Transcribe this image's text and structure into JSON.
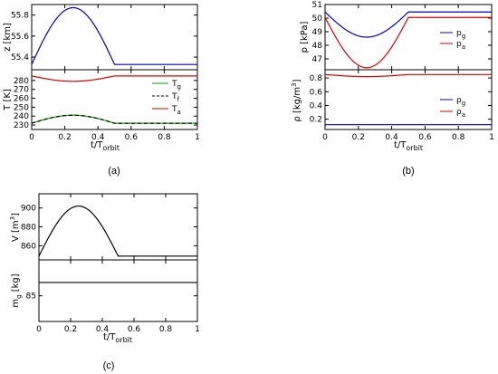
{
  "colors": {
    "blue": "#0000cc",
    "green": "#00aa00",
    "red": "#dd0000",
    "black": "#000000"
  },
  "chart_data": [
    {
      "panel": "(a)",
      "type": "line",
      "subplots": [
        {
          "id": "a_top",
          "ylabel": "z [km]",
          "ylim": [
            55.28,
            55.9
          ],
          "yticks": [
            {
              "v": 55.4,
              "label": "55.4"
            },
            {
              "v": 55.6,
              "label": "55.6"
            },
            {
              "v": 55.8,
              "label": "55.8"
            }
          ],
          "series": [
            {
              "color": "#0000cc",
              "dash": false,
              "fn": "bump",
              "base": 55.33,
              "amp": 0.54
            }
          ],
          "legend": []
        },
        {
          "id": "a_bot",
          "ylabel": "T [K]",
          "ylim": [
            225,
            292
          ],
          "yticks": [
            {
              "v": 230,
              "label": "230"
            },
            {
              "v": 240,
              "label": "240"
            },
            {
              "v": 250,
              "label": "250"
            },
            {
              "v": 260,
              "label": "260"
            },
            {
              "v": 270,
              "label": "270"
            },
            {
              "v": 280,
              "label": "280"
            }
          ],
          "xlabel": "t/T",
          "xlabel_sub": "orbit",
          "xticks": [
            {
              "v": 0,
              "label": "0"
            },
            {
              "v": 0.2,
              "label": "0.2"
            },
            {
              "v": 0.4,
              "label": "0.4"
            },
            {
              "v": 0.6,
              "label": "0.6"
            },
            {
              "v": 0.8,
              "label": "0.8"
            },
            {
              "v": 1,
              "label": "1"
            }
          ],
          "series": [
            {
              "name": "T",
              "sub": "g",
              "color": "#00aa00",
              "dash": false,
              "fn": "bump",
              "base": 232,
              "amp": 9
            },
            {
              "name": "T",
              "sub": "f",
              "color": "#000000",
              "dash": true,
              "fn": "bump",
              "base": 232,
              "amp": 9
            },
            {
              "name": "T",
              "sub": "a",
              "color": "#dd0000",
              "dash": false,
              "fn": "bump",
              "base": 285,
              "amp": -6
            }
          ]
        }
      ]
    },
    {
      "panel": "(b)",
      "type": "line",
      "subplots": [
        {
          "id": "b_top",
          "ylabel": "p [kPa]",
          "ylim": [
            46.2,
            51.0
          ],
          "yticks": [
            {
              "v": 47,
              "label": "47"
            },
            {
              "v": 48,
              "label": "48"
            },
            {
              "v": 49,
              "label": "49"
            },
            {
              "v": 50,
              "label": "50"
            },
            {
              "v": 51,
              "label": "51"
            }
          ],
          "series": [
            {
              "name": "p",
              "sub": "g",
              "color": "#0000cc",
              "dash": false,
              "fn": "bump",
              "base": 50.45,
              "amp": -1.85
            },
            {
              "name": "p",
              "sub": "a",
              "color": "#dd0000",
              "dash": false,
              "fn": "bump",
              "base": 50.05,
              "amp": -3.7
            }
          ]
        },
        {
          "id": "b_bot",
          "ylabel": "ρ [kg/m",
          "ylabel_sup": "3",
          "ylabel_end": "]",
          "ylim": [
            0.05,
            0.92
          ],
          "yticks": [
            {
              "v": 0.2,
              "label": "0.2"
            },
            {
              "v": 0.4,
              "label": "0.4"
            },
            {
              "v": 0.6,
              "label": "0.6"
            },
            {
              "v": 0.8,
              "label": "0.8"
            }
          ],
          "xlabel": "t/T",
          "xlabel_sub": "orbit",
          "xticks": [
            {
              "v": 0,
              "label": "0"
            },
            {
              "v": 0.2,
              "label": "0.2"
            },
            {
              "v": 0.4,
              "label": "0.4"
            },
            {
              "v": 0.6,
              "label": "0.6"
            },
            {
              "v": 0.8,
              "label": "0.8"
            },
            {
              "v": 1,
              "label": "1"
            }
          ],
          "series": [
            {
              "name": "ρ",
              "sub": "g",
              "color": "#0000cc",
              "dash": false,
              "fn": "bump",
              "base": 0.12,
              "amp": 0.0
            },
            {
              "name": "ρ",
              "sub": "a",
              "color": "#dd0000",
              "dash": false,
              "fn": "bump",
              "base": 0.85,
              "amp": -0.03
            }
          ]
        }
      ]
    },
    {
      "panel": "(c)",
      "type": "line",
      "subplots": [
        {
          "id": "c_top",
          "ylabel": "V [m",
          "ylabel_sup": "3",
          "ylabel_end": "]",
          "ylim": [
            845,
            915
          ],
          "yticks": [
            {
              "v": 860,
              "label": "860"
            },
            {
              "v": 880,
              "label": "880"
            },
            {
              "v": 900,
              "label": "900"
            }
          ],
          "series": [
            {
              "color": "#000000",
              "dash": false,
              "fn": "bump",
              "base": 849,
              "amp": 53
            }
          ],
          "legend": []
        },
        {
          "id": "c_bot",
          "ylabel": "m",
          "ylabel_sub": "g",
          "ylabel_end": " [kg]",
          "ylim": [
            80,
            92
          ],
          "yticks": [
            {
              "v": 85,
              "label": "85"
            }
          ],
          "xlabel": "t/T",
          "xlabel_sub": "orbit",
          "xticks": [
            {
              "v": 0,
              "label": "0"
            },
            {
              "v": 0.2,
              "label": "0.2"
            },
            {
              "v": 0.4,
              "label": "0.4"
            },
            {
              "v": 0.6,
              "label": "0.6"
            },
            {
              "v": 0.8,
              "label": "0.8"
            },
            {
              "v": 1,
              "label": "1"
            }
          ],
          "series": [
            {
              "color": "#000000",
              "dash": false,
              "fn": "flat",
              "base": 87.6,
              "amp": 0
            }
          ],
          "legend": []
        }
      ]
    }
  ]
}
